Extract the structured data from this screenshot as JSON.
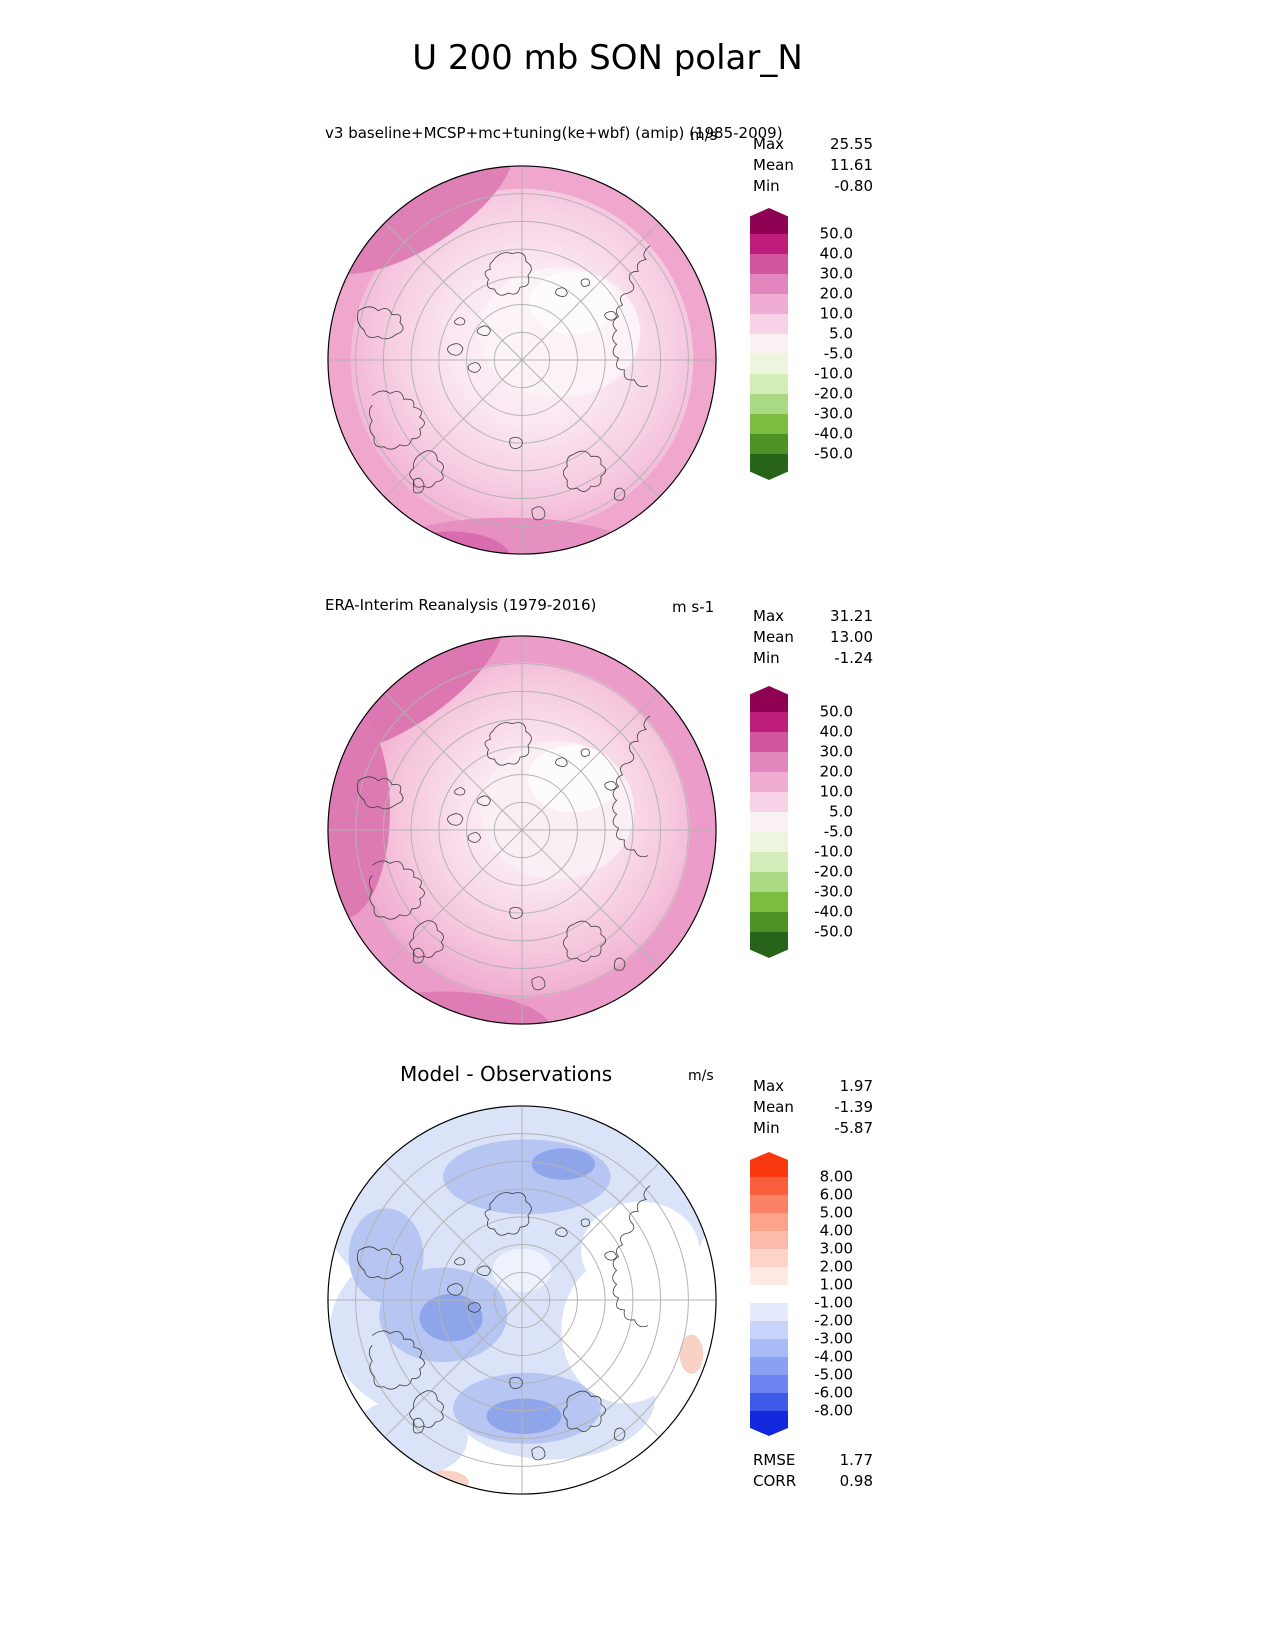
{
  "page_title": "U 200 mb SON polar_N",
  "panels": [
    {
      "subtitle": "v3 baseline+MCSP+mc+tuning(ke+wbf) (amip) (1985-2009)",
      "units": "m/s",
      "stats": [
        {
          "label": "Max",
          "value": "25.55"
        },
        {
          "label": "Mean",
          "value": "11.61"
        },
        {
          "label": "Min",
          "value": "-0.80"
        }
      ],
      "colorbar": {
        "ticks": [
          "50.0",
          "40.0",
          "30.0",
          "20.0",
          "10.0",
          "5.0",
          "-5.0",
          "-10.0",
          "-20.0",
          "-30.0",
          "-40.0",
          "-50.0"
        ],
        "colors": [
          "#8e0152",
          "#bf1d7c",
          "#d2569e",
          "#e287bd",
          "#efadd4",
          "#f8d2e6",
          "#faf1f5",
          "#edf5df",
          "#d3ecb8",
          "#aad983",
          "#7cbd41",
          "#4f9125",
          "#276419"
        ]
      }
    },
    {
      "subtitle": "ERA-Interim Reanalysis (1979-2016)",
      "units": "m s-1",
      "stats": [
        {
          "label": "Max",
          "value": "31.21"
        },
        {
          "label": "Mean",
          "value": "13.00"
        },
        {
          "label": "Min",
          "value": "-1.24"
        }
      ],
      "colorbar": {
        "ticks": [
          "50.0",
          "40.0",
          "30.0",
          "20.0",
          "10.0",
          "5.0",
          "-5.0",
          "-10.0",
          "-20.0",
          "-30.0",
          "-40.0",
          "-50.0"
        ],
        "colors": [
          "#8e0152",
          "#bf1d7c",
          "#d2569e",
          "#e287bd",
          "#efadd4",
          "#f8d2e6",
          "#faf1f5",
          "#edf5df",
          "#d3ecb8",
          "#aad983",
          "#7cbd41",
          "#4f9125",
          "#276419"
        ]
      }
    },
    {
      "subtitle": "Model - Observations",
      "units": "m/s",
      "stats": [
        {
          "label": "Max",
          "value": "1.97"
        },
        {
          "label": "Mean",
          "value": "-1.39"
        },
        {
          "label": "Min",
          "value": "-5.87"
        }
      ],
      "colorbar": {
        "ticks": [
          "8.00",
          "6.00",
          "5.00",
          "4.00",
          "3.00",
          "2.00",
          "1.00",
          "-1.00",
          "-2.00",
          "-3.00",
          "-4.00",
          "-5.00",
          "-6.00",
          "-8.00"
        ],
        "colors": [
          "#f93810",
          "#fb5e3c",
          "#fc8265",
          "#fda28b",
          "#fdbcab",
          "#fed3c8",
          "#ffe9e3",
          "#ffffff",
          "#e4eafc",
          "#c9d4fa",
          "#a9bbf7",
          "#8aa0f3",
          "#6b84ef",
          "#3f59e9",
          "#1228dd"
        ]
      },
      "extra_stats": [
        {
          "label": "RMSE",
          "value": "1.77"
        },
        {
          "label": "CORR",
          "value": "0.98"
        }
      ]
    }
  ],
  "chart_data": [
    {
      "type": "heatmap",
      "subtype": "filled_contour_map",
      "projection": "north_polar_stereographic",
      "title": "v3 baseline+MCSP+mc+tuning(ke+wbf) (amip) (1985-2009)",
      "variable": "U 200 mb SON polar_N",
      "units": "m/s",
      "contour_levels": [
        -50,
        -40,
        -30,
        -20,
        -10,
        -5,
        5,
        10,
        20,
        30,
        40,
        50
      ],
      "colormap": [
        "#8e0152",
        "#bf1d7c",
        "#d2569e",
        "#e287bd",
        "#efadd4",
        "#f8d2e6",
        "#faf1f5",
        "#edf5df",
        "#d3ecb8",
        "#aad983",
        "#7cbd41",
        "#4f9125",
        "#276419"
      ],
      "stats": {
        "max": 25.55,
        "mean": 11.61,
        "min": -0.8
      },
      "legend_position": "right",
      "grid": true
    },
    {
      "type": "heatmap",
      "subtype": "filled_contour_map",
      "projection": "north_polar_stereographic",
      "title": "ERA-Interim Reanalysis (1979-2016)",
      "variable": "U 200 mb SON polar_N",
      "units": "m s-1",
      "contour_levels": [
        -50,
        -40,
        -30,
        -20,
        -10,
        -5,
        5,
        10,
        20,
        30,
        40,
        50
      ],
      "colormap": [
        "#8e0152",
        "#bf1d7c",
        "#d2569e",
        "#e287bd",
        "#efadd4",
        "#f8d2e6",
        "#faf1f5",
        "#edf5df",
        "#d3ecb8",
        "#aad983",
        "#7cbd41",
        "#4f9125",
        "#276419"
      ],
      "stats": {
        "max": 31.21,
        "mean": 13.0,
        "min": -1.24
      },
      "legend_position": "right",
      "grid": true
    },
    {
      "type": "heatmap",
      "subtype": "filled_contour_map",
      "projection": "north_polar_stereographic",
      "title": "Model - Observations",
      "variable": "U 200 mb SON polar_N difference",
      "units": "m/s",
      "contour_levels": [
        -8,
        -6,
        -5,
        -4,
        -3,
        -2,
        -1,
        1,
        2,
        3,
        4,
        5,
        6,
        8
      ],
      "colormap": [
        "#f93810",
        "#fb5e3c",
        "#fc8265",
        "#fda28b",
        "#fdbcab",
        "#fed3c8",
        "#ffe9e3",
        "#ffffff",
        "#e4eafc",
        "#c9d4fa",
        "#a9bbf7",
        "#8aa0f3",
        "#6b84ef",
        "#3f59e9",
        "#1228dd"
      ],
      "stats": {
        "max": 1.97,
        "mean": -1.39,
        "min": -5.87,
        "rmse": 1.77,
        "corr": 0.98
      },
      "legend_position": "right",
      "grid": true
    }
  ]
}
